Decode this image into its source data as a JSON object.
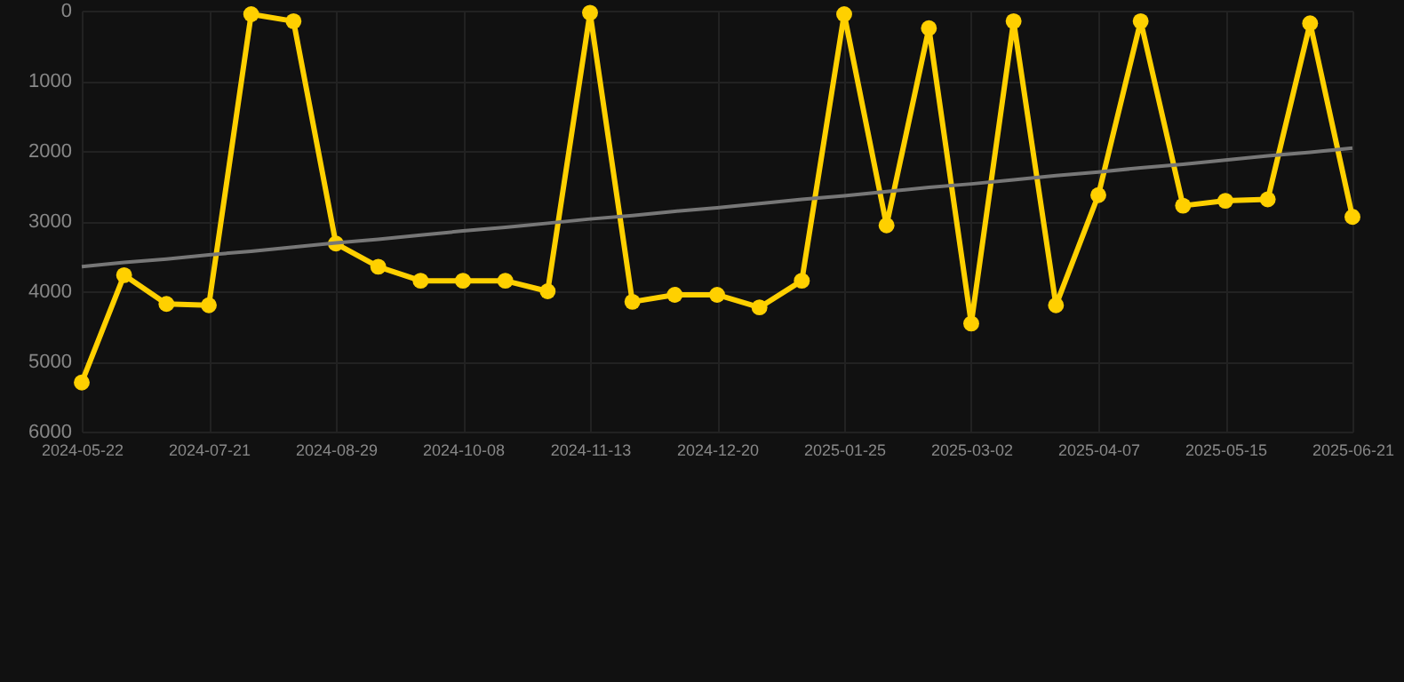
{
  "chart_data": {
    "type": "line",
    "categories": [
      "2024-05-22",
      null,
      null,
      "2024-07-21",
      null,
      null,
      "2024-08-29",
      null,
      null,
      "2024-10-08",
      null,
      null,
      "2024-11-13",
      null,
      null,
      "2024-12-20",
      null,
      null,
      "2025-01-25",
      null,
      null,
      "2025-03-02",
      null,
      null,
      "2025-04-07",
      null,
      null,
      "2025-05-15",
      null,
      null,
      "2025-06-21"
    ],
    "series": [
      {
        "color": "#ffd000",
        "marker": "circle",
        "values": [
          5300,
          3770,
          4180,
          4200,
          50,
          150,
          3320,
          3650,
          3850,
          3850,
          3850,
          4000,
          30,
          4150,
          4050,
          4050,
          4230,
          3850,
          50,
          3060,
          250,
          4460,
          150,
          4200,
          2630,
          150,
          2780,
          2710,
          2690,
          180,
          2940
        ]
      },
      {
        "type": "line",
        "color": "#777777",
        "marker": "none",
        "values": [
          3650,
          3590,
          3540,
          3480,
          3430,
          3370,
          3310,
          3260,
          3200,
          3140,
          3090,
          3030,
          2970,
          2920,
          2860,
          2810,
          2750,
          2690,
          2640,
          2580,
          2520,
          2470,
          2410,
          2350,
          2300,
          2240,
          2190,
          2130,
          2070,
          2020,
          1960
        ]
      }
    ],
    "ylim": [
      6000,
      0
    ],
    "yticks": [
      0,
      1000,
      2000,
      3000,
      4000,
      5000,
      6000
    ],
    "grid": true
  }
}
